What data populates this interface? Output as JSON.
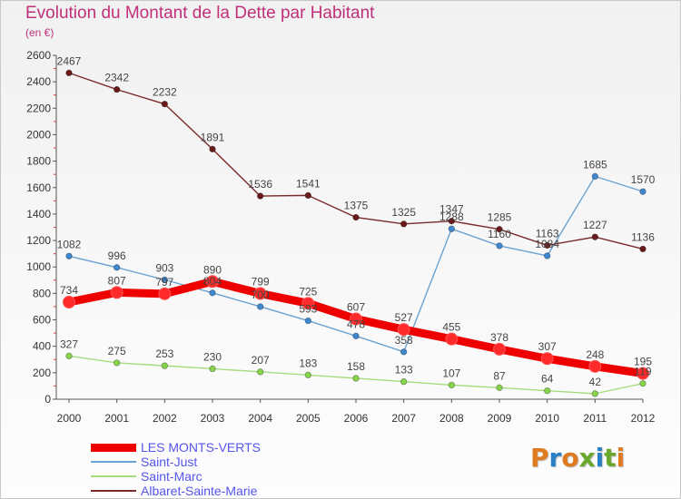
{
  "header": {
    "title": "Evolution du Montant de la Dette par Habitant",
    "subtitle": "(en €)"
  },
  "logo": {
    "text": "Proxiti",
    "colors": [
      "#e07a1e",
      "#2b7fc4",
      "#e07a1e",
      "#6aa82c",
      "#2b7fc4",
      "#6aa82c",
      "#e07a1e"
    ]
  },
  "chart_data": {
    "type": "line",
    "title": "Evolution du Montant de la Dette par Habitant",
    "subtitle": "(en €)",
    "xlabel": "",
    "ylabel": "",
    "x": [
      2000,
      2001,
      2002,
      2003,
      2004,
      2005,
      2006,
      2007,
      2008,
      2009,
      2010,
      2011,
      2012
    ],
    "ylim": [
      0,
      2600
    ],
    "yticks": [
      0,
      200,
      400,
      600,
      800,
      1000,
      1200,
      1400,
      1600,
      1800,
      2000,
      2200,
      2400,
      2600
    ],
    "grid": false,
    "legend_position": "bottom-left",
    "series": [
      {
        "name": "LES MONTS-VERTS",
        "color": "#ee0000",
        "marker_color": "#ff2a2a",
        "width": "thick",
        "values": [
          734,
          807,
          797,
          890,
          799,
          725,
          607,
          527,
          455,
          378,
          307,
          248,
          195
        ],
        "labels": [
          "734",
          "807",
          "797",
          "890",
          "799",
          "725",
          "607",
          "527",
          "455",
          "378",
          "307",
          "248",
          "195"
        ]
      },
      {
        "name": "Saint-Just",
        "color": "#6aa2d2",
        "marker_color": "#3f88d0",
        "width": "thin",
        "values": [
          1082,
          996,
          903,
          804,
          700,
          593,
          478,
          358,
          1288,
          1160,
          1084,
          1685,
          1570
        ],
        "labels": [
          "1082",
          "996",
          "903",
          "804",
          "700",
          "593",
          "478",
          "358",
          "1288",
          "1160",
          "1084",
          "1685",
          "1570"
        ]
      },
      {
        "name": "Saint-Marc",
        "color": "#a6dc7c",
        "marker_color": "#86d44a",
        "width": "thin",
        "values": [
          327,
          275,
          253,
          230,
          207,
          183,
          158,
          133,
          107,
          87,
          64,
          42,
          119
        ],
        "labels": [
          "327",
          "275",
          "253",
          "230",
          "207",
          "183",
          "158",
          "133",
          "107",
          "87",
          "64",
          "42",
          "119"
        ]
      },
      {
        "name": "Albaret-Sainte-Marie",
        "color": "#7a2a2a",
        "marker_color": "#6a1a1a",
        "width": "thin",
        "values": [
          2467,
          2342,
          2232,
          1891,
          1536,
          1541,
          1375,
          1325,
          1347,
          1285,
          1163,
          1227,
          1136
        ],
        "labels": [
          "2467",
          "2342",
          "2232",
          "1891",
          "1536",
          "1541",
          "1375",
          "1325",
          "1347",
          "1285",
          "1163",
          "1227",
          "1136"
        ]
      }
    ]
  }
}
